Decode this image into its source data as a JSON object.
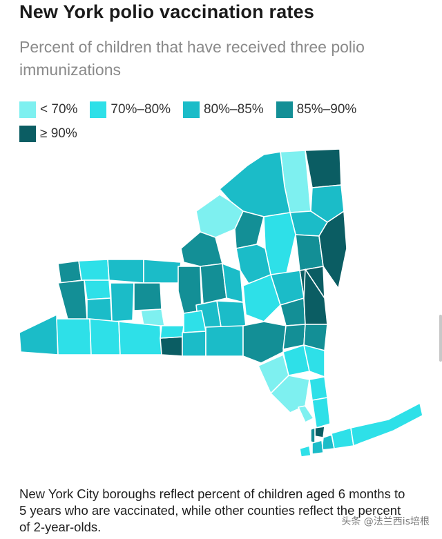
{
  "title": "New York polio vaccination rates",
  "subtitle": "Percent of children that have received three polio immunizations",
  "legend": [
    {
      "label": "< 70%",
      "color": "#7ef0f0"
    },
    {
      "label": "70%–80%",
      "color": "#2ee0e8"
    },
    {
      "label": "80%–85%",
      "color": "#1bbcc8"
    },
    {
      "label": "85%–90%",
      "color": "#138f96"
    },
    {
      "label": "≥ 90%",
      "color": "#0b5d63"
    }
  ],
  "caption": "New York City boroughs reflect percent of children aged 6 months to 5 years who are vaccinated, while other counties reflect the percent of 2-year-olds.",
  "watermark": "头条 @法兰西is培根",
  "map": {
    "region": "New York State",
    "outline_color": "#ffffff"
  }
}
